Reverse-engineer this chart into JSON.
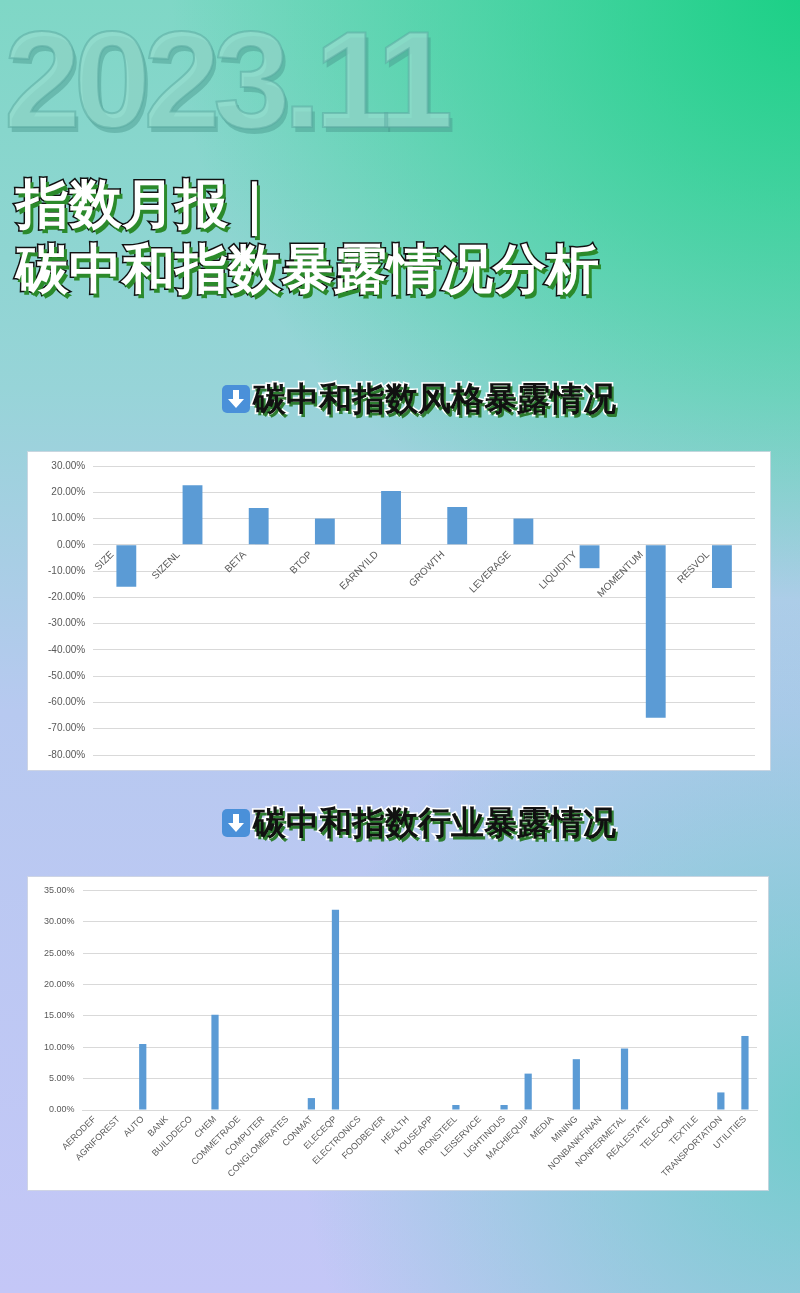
{
  "chart_data": [
    {
      "type": "other",
      "title": "指数月报｜",
      "subtitle": "碳中和指数暴露情况分析",
      "annotations": [
        "2023.11"
      ]
    },
    {
      "type": "bar",
      "title": "碳中和指数风格暴露情况",
      "categories": [
        "SIZE",
        "SIZENL",
        "BETA",
        "BTOP",
        "EARNYILD",
        "GROWTH",
        "LEVERAGE",
        "LIQUIDITY",
        "MOMENTUM",
        "RESVOL"
      ],
      "values": [
        -16.0,
        22.7,
        14.0,
        10.0,
        20.5,
        14.4,
        10.0,
        -8.9,
        -65.8,
        -16.4
      ],
      "color": "#5b9bd5",
      "ylim": [
        -80,
        30
      ],
      "yticks": [
        {
          "value": 30,
          "label": "30.00%"
        },
        {
          "value": 20,
          "label": "20.00%"
        },
        {
          "value": 10,
          "label": "10.00%"
        },
        {
          "value": 0,
          "label": "0.00%"
        },
        {
          "value": -10,
          "label": "-10.00%"
        },
        {
          "value": -20,
          "label": "-20.00%"
        },
        {
          "value": -30,
          "label": "-30.00%"
        },
        {
          "value": -40,
          "label": "-40.00%"
        },
        {
          "value": -50,
          "label": "-50.00%"
        },
        {
          "value": -60,
          "label": "-60.00%"
        },
        {
          "value": -70,
          "label": "-70.00%"
        },
        {
          "value": -80,
          "label": "-80.00%"
        }
      ],
      "grid": "y"
    },
    {
      "type": "bar",
      "title": "碳中和指数行业暴露情况",
      "categories": [
        "AERODEF",
        "AGRIFOREST",
        "AUTO",
        "BANK",
        "BUILDDECO",
        "CHEM",
        "COMMETRADE",
        "COMPUTER",
        "CONGLOMERATES",
        "CONMAT",
        "ELECEQP",
        "ELECTRONICS",
        "FOODBEVER",
        "HEALTH",
        "HOUSEAPP",
        "IRONSTEEL",
        "LEISERVICE",
        "LIGHTINDUS",
        "MACHIEQUIP",
        "MEDIA",
        "MINING",
        "NONBANKFINAN",
        "NONFERMETAL",
        "REALESTATE",
        "TELECOM",
        "TEXTILE",
        "TRANSPORTATION",
        "UTILITIES"
      ],
      "values": [
        0,
        0,
        10.5,
        0,
        0,
        15.2,
        0,
        0,
        0,
        1.9,
        31.9,
        0,
        0,
        0,
        0,
        0.8,
        0,
        0.8,
        5.8,
        0,
        8.1,
        0,
        9.8,
        0,
        0,
        0,
        2.8,
        11.8
      ],
      "color": "#5b9bd5",
      "ylim": [
        0,
        35
      ],
      "yticks": [
        {
          "value": 0,
          "label": "0.00%"
        },
        {
          "value": 5,
          "label": "5.00%"
        },
        {
          "value": 10,
          "label": "10.00%"
        },
        {
          "value": 15,
          "label": "15.00%"
        },
        {
          "value": 20,
          "label": "20.00%"
        },
        {
          "value": 25,
          "label": "25.00%"
        },
        {
          "value": 30,
          "label": "30.00%"
        },
        {
          "value": 35,
          "label": "35.00%"
        }
      ],
      "grid": "y"
    }
  ]
}
